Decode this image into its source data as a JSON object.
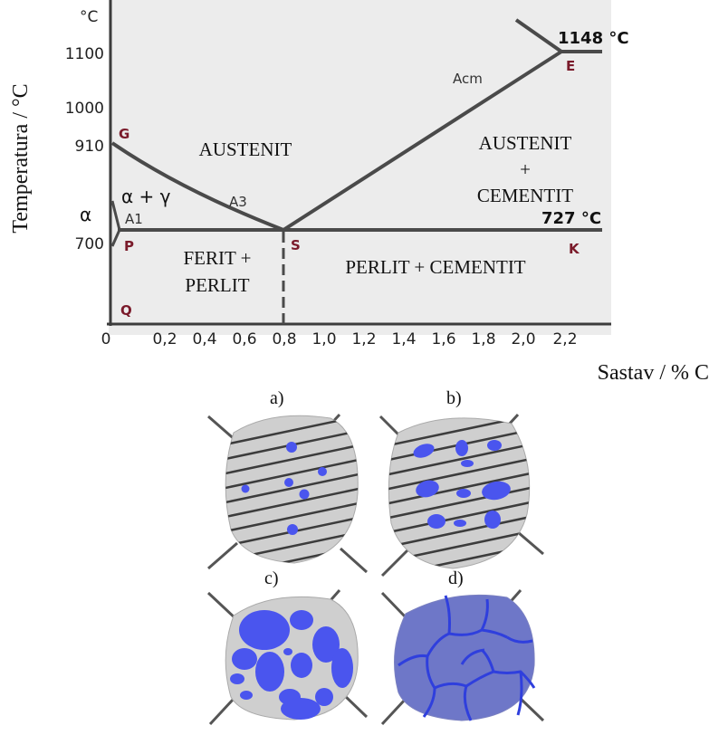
{
  "diagram": {
    "y_axis_label": "Temperatura / °C",
    "x_axis_label": "Sastav / % C",
    "y_unit": "°C",
    "y_ticks": [
      "1100",
      "1000",
      "910",
      "700"
    ],
    "x_ticks": [
      "0",
      "0,2",
      "0,4",
      "0,6",
      "0,8",
      "1,0",
      "1,2",
      "1,4",
      "1,6",
      "1,8",
      "2,0",
      "2,2"
    ],
    "points": {
      "G": "G",
      "E": "E",
      "P": "P",
      "S": "S",
      "K": "K",
      "Q": "Q"
    },
    "temps": {
      "eutectic": "1148 °C",
      "eutectoid": "727 °C"
    },
    "lines": {
      "acm": "Acm",
      "a3": "A3",
      "a1": "A1"
    },
    "phases": {
      "austenit": "AUSTENIT",
      "austenit_cementit_1": "AUSTENIT",
      "austenit_cementit_2": "+",
      "austenit_cementit_3": "CEMENTIT",
      "alpha_gamma": "α + γ",
      "alpha": "α",
      "ferit_perlit_1": "FERIT +",
      "ferit_perlit_2": "PERLIT",
      "perlit_cementit": "PERLIT + CEMENTIT"
    }
  },
  "micrographs": {
    "a": "a)",
    "b": "b)",
    "c": "c)",
    "d": "d)"
  },
  "colors": {
    "region_fill": "#ececec",
    "line": "#4a4a4a",
    "point_label": "#7a1a2a",
    "grain_fill": "#cfcfcf",
    "cementite": "#4a55ee",
    "grain_d": "#6e77c8"
  }
}
